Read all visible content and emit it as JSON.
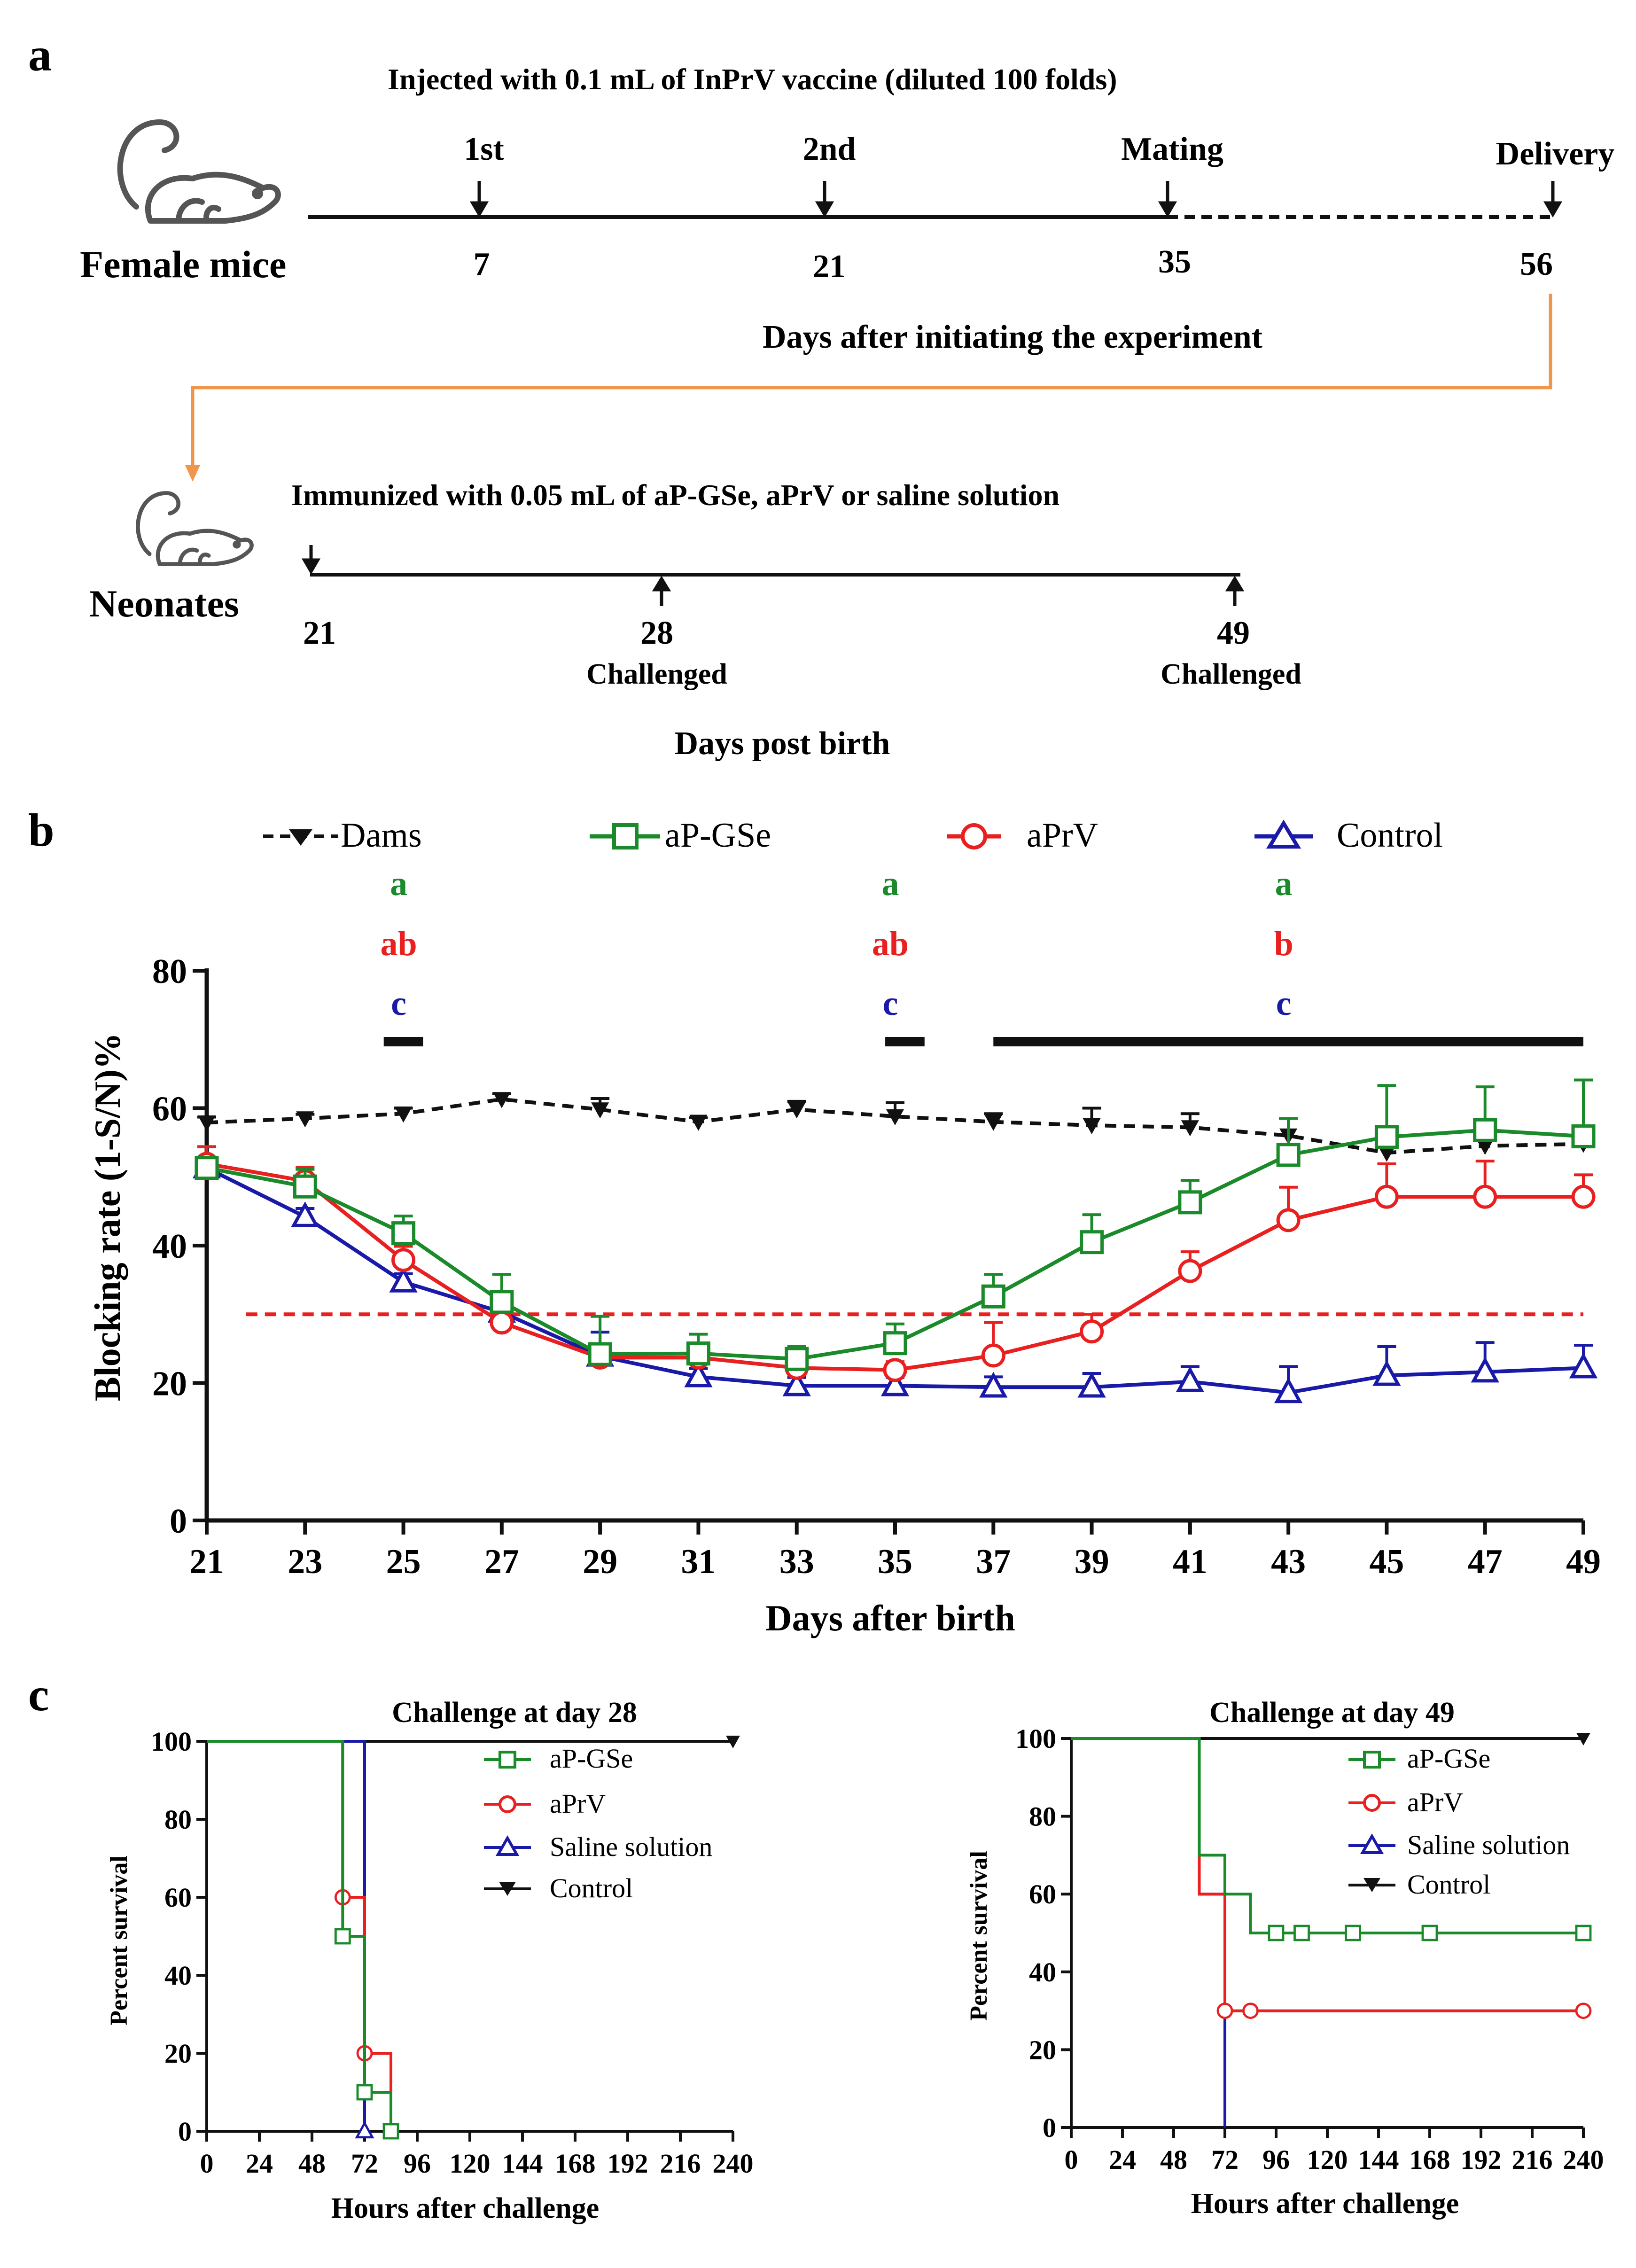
{
  "colors": {
    "dams": "#111111",
    "aPGSe": "#1a8a2a",
    "aPrV": "#e82020",
    "control": "#1a1aa8",
    "timeline_orange": "#f0964a",
    "threshold": "#e82020",
    "axis": "#111111"
  },
  "panel_a": {
    "label": "a",
    "icons": [
      "mouse-icon",
      "mouse-icon-small"
    ],
    "female": {
      "title": "Injected with 0.1 mL of InPrV vaccine (diluted 100 folds)",
      "subject": "Female mice",
      "axis_label": "Days after initiating the experiment",
      "events": [
        {
          "label": "1st",
          "day": "7"
        },
        {
          "label": "2nd",
          "day": "21"
        },
        {
          "label": "Mating",
          "day": "35"
        },
        {
          "label": "Delivery",
          "day": "56"
        }
      ]
    },
    "neonates": {
      "title": "Immunized with 0.05 mL of aP-GSe, aPrV or saline solution",
      "subject": "Neonates",
      "axis_label": "Days post birth",
      "events": [
        {
          "day": "21",
          "note": ""
        },
        {
          "day": "28",
          "note": "Challenged"
        },
        {
          "day": "49",
          "note": "Challenged"
        }
      ]
    }
  },
  "panel_b": {
    "label": "b",
    "chart_data": {
      "type": "line",
      "xlabel": "Days after birth",
      "ylabel": "Blocking rate (1-S/N)%",
      "x": [
        21,
        23,
        25,
        27,
        29,
        31,
        33,
        35,
        37,
        39,
        41,
        43,
        45,
        47,
        49
      ],
      "xlim": [
        21,
        49
      ],
      "ylim": [
        0,
        80
      ],
      "yticks": [
        0,
        20,
        40,
        60,
        80
      ],
      "threshold": 30,
      "series": [
        {
          "name": "Dams",
          "marker": "triangle-down",
          "dashed": true,
          "values": [
            57.9,
            58.5,
            59.2,
            61.3,
            59.8,
            58.0,
            59.8,
            58.8,
            58.0,
            57.5,
            57.2,
            56.0,
            53.5,
            54.5,
            54.8
          ],
          "errors": [
            0.8,
            0.6,
            0.8,
            0.8,
            1.6,
            0.6,
            1.2,
            2.0,
            1.2,
            2.5,
            2.0,
            2.5,
            2.0,
            1.5,
            2.5
          ]
        },
        {
          "name": "aP-GSe",
          "marker": "square",
          "values": [
            51.3,
            48.6,
            41.8,
            31.8,
            24.2,
            24.3,
            23.5,
            25.8,
            32.6,
            40.5,
            46.3,
            53.2,
            55.8,
            56.8,
            55.9
          ],
          "errors": [
            1.5,
            2.5,
            2.5,
            4.0,
            5.5,
            2.8,
            1.8,
            2.8,
            3.2,
            4.0,
            3.2,
            5.3,
            7.5,
            6.3,
            8.2
          ]
        },
        {
          "name": "aPrV",
          "marker": "circle",
          "values": [
            51.9,
            49.4,
            37.9,
            28.8,
            23.7,
            23.7,
            22.2,
            21.9,
            24.0,
            27.5,
            36.3,
            43.7,
            47.1,
            47.1,
            47.1
          ],
          "errors": [
            2.5,
            2.0,
            2.0,
            1.2,
            1.2,
            1.5,
            1.2,
            1.2,
            4.8,
            2.5,
            2.8,
            4.8,
            4.8,
            5.2,
            3.2
          ]
        },
        {
          "name": "Control",
          "marker": "triangle-up",
          "values": [
            51.3,
            44.2,
            34.7,
            30.3,
            23.9,
            20.9,
            19.6,
            19.6,
            19.4,
            19.4,
            20.2,
            18.6,
            21.1,
            21.6,
            22.2
          ],
          "errors": [
            1.2,
            1.2,
            1.2,
            1.2,
            3.5,
            1.2,
            1.2,
            1.2,
            1.5,
            2.0,
            2.2,
            3.8,
            4.2,
            4.3,
            3.3
          ]
        }
      ],
      "annotations": [
        {
          "x": 25,
          "letters": [
            "a",
            "ab",
            "c"
          ],
          "bar": [
            24.6,
            25.4
          ]
        },
        {
          "x": 35,
          "letters": [
            "a",
            "ab",
            "c"
          ],
          "bar": [
            34.8,
            35.6
          ]
        },
        {
          "x": 43,
          "letters": [
            "a",
            "b",
            "c"
          ],
          "bar": [
            37,
            49
          ]
        }
      ]
    }
  },
  "panel_c": {
    "label": "c",
    "charts": [
      {
        "title": "Challenge at day 28",
        "xlabel": "Hours after challenge",
        "ylabel": "Percent survival",
        "xticks": [
          0,
          24,
          48,
          72,
          96,
          120,
          144,
          168,
          192,
          216,
          240
        ],
        "yticks": [
          0,
          20,
          40,
          60,
          80,
          100
        ],
        "xlim": [
          0,
          240
        ],
        "ylim": [
          0,
          100
        ],
        "legend": [
          "aP-GSe",
          "aPrV",
          "Saline solution",
          "Control"
        ],
        "chart_data": {
          "type": "line",
          "subtype": "kaplan-meier",
          "series": [
            {
              "name": "aP-GSe",
              "steps": [
                [
                  0,
                  100
                ],
                [
                  62,
                  50
                ],
                [
                  72,
                  10
                ],
                [
                  84,
                  0
                ]
              ],
              "censor_marks": [
                [
                  62,
                  50
                ],
                [
                  72,
                  10
                ],
                [
                  84,
                  0
                ]
              ]
            },
            {
              "name": "aPrV",
              "steps": [
                [
                  0,
                  100
                ],
                [
                  62,
                  60
                ],
                [
                  72,
                  20
                ],
                [
                  84,
                  0
                ]
              ],
              "censor_marks": [
                [
                  62,
                  60
                ],
                [
                  72,
                  20
                ]
              ]
            },
            {
              "name": "Saline solution",
              "steps": [
                [
                  0,
                  100
                ],
                [
                  62,
                  100
                ],
                [
                  72,
                  0
                ]
              ],
              "censor_marks": [
                [
                  72,
                  0
                ]
              ]
            },
            {
              "name": "Control",
              "steps": [
                [
                  0,
                  100
                ],
                [
                  240,
                  100
                ]
              ],
              "censor_marks": [
                [
                  240,
                  100
                ]
              ]
            }
          ]
        }
      },
      {
        "title": "Challenge at day 49",
        "xlabel": "Hours after challenge",
        "ylabel": "Percent survival",
        "xticks": [
          0,
          24,
          48,
          72,
          96,
          120,
          144,
          168,
          192,
          216,
          240
        ],
        "yticks": [
          0,
          20,
          40,
          60,
          80,
          100
        ],
        "xlim": [
          0,
          240
        ],
        "ylim": [
          0,
          100
        ],
        "legend": [
          "aP-GSe",
          "aPrV",
          "Saline solution",
          "Control"
        ],
        "chart_data": {
          "type": "line",
          "subtype": "kaplan-meier",
          "series": [
            {
              "name": "aP-GSe",
              "steps": [
                [
                  0,
                  100
                ],
                [
                  60,
                  70
                ],
                [
                  72,
                  60
                ],
                [
                  84,
                  50
                ],
                [
                  240,
                  50
                ]
              ],
              "censor_marks": [
                [
                  96,
                  50
                ],
                [
                  108,
                  50
                ],
                [
                  132,
                  50
                ],
                [
                  168,
                  50
                ],
                [
                  240,
                  50
                ]
              ]
            },
            {
              "name": "aPrV",
              "steps": [
                [
                  0,
                  100
                ],
                [
                  60,
                  60
                ],
                [
                  72,
                  30
                ],
                [
                  240,
                  30
                ]
              ],
              "censor_marks": [
                [
                  72,
                  30
                ],
                [
                  84,
                  30
                ],
                [
                  240,
                  30
                ]
              ]
            },
            {
              "name": "Saline solution",
              "steps": [
                [
                  0,
                  100
                ],
                [
                  60,
                  60
                ],
                [
                  72,
                  0
                ]
              ],
              "censor_marks": []
            },
            {
              "name": "Control",
              "steps": [
                [
                  0,
                  100
                ],
                [
                  240,
                  100
                ]
              ],
              "censor_marks": [
                [
                  240,
                  100
                ]
              ]
            }
          ]
        }
      }
    ]
  }
}
